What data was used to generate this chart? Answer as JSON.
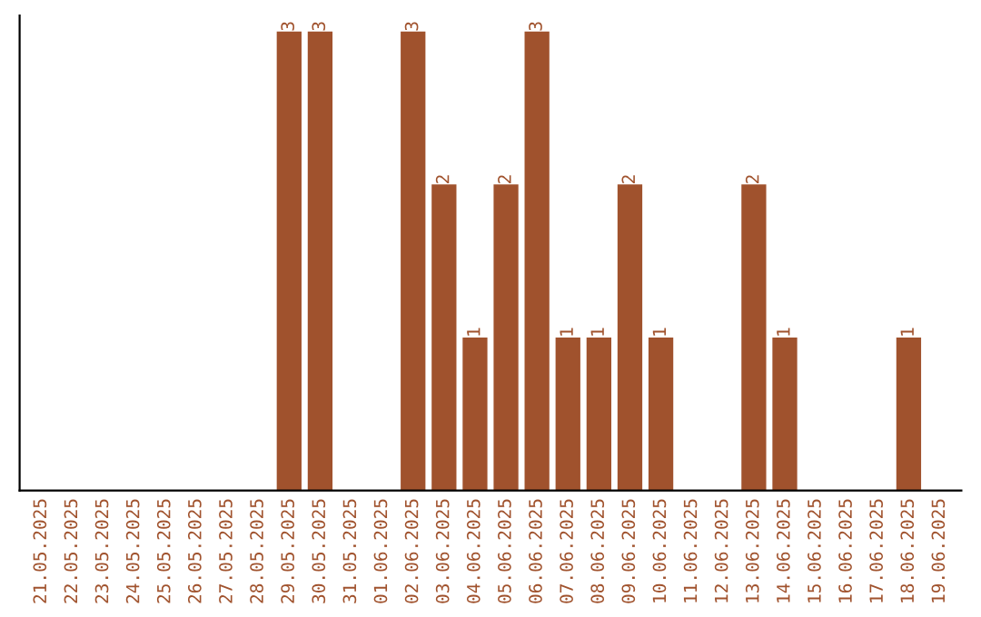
{
  "chart_data": {
    "type": "bar",
    "categories": [
      "21.05.2025",
      "22.05.2025",
      "23.05.2025",
      "24.05.2025",
      "25.05.2025",
      "26.05.2025",
      "27.05.2025",
      "28.05.2025",
      "29.05.2025",
      "30.05.2025",
      "31.05.2025",
      "01.06.2025",
      "02.06.2025",
      "03.06.2025",
      "04.06.2025",
      "05.06.2025",
      "06.06.2025",
      "07.06.2025",
      "08.06.2025",
      "09.06.2025",
      "10.06.2025",
      "11.06.2025",
      "12.06.2025",
      "13.06.2025",
      "14.06.2025",
      "15.06.2025",
      "16.06.2025",
      "17.06.2025",
      "18.06.2025",
      "19.06.2025"
    ],
    "values": [
      0,
      0,
      0,
      0,
      0,
      0,
      0,
      0,
      3,
      3,
      0,
      0,
      3,
      2,
      1,
      2,
      3,
      1,
      1,
      2,
      1,
      0,
      0,
      2,
      1,
      0,
      0,
      0,
      1,
      0
    ],
    "value_labels": [
      null,
      null,
      null,
      null,
      null,
      null,
      null,
      null,
      "3",
      "3",
      null,
      null,
      "3",
      "2",
      "1",
      "2",
      "3",
      "1",
      "1",
      "2",
      "1",
      null,
      null,
      "2",
      "1",
      null,
      null,
      null,
      "1",
      null
    ],
    "color": "#a0522d",
    "grid": false,
    "legend": false
  }
}
